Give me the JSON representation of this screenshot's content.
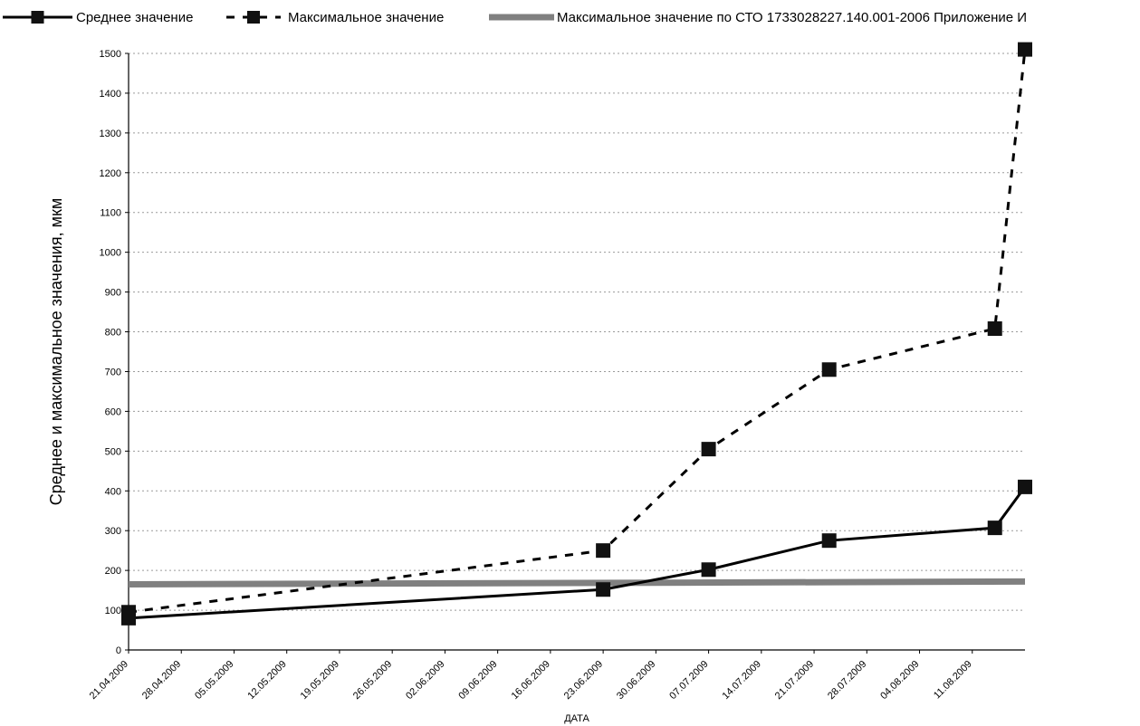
{
  "chart_data": {
    "type": "line",
    "xlabel": "ДАТА",
    "ylabel": "Среднее и максимальное значения, мкм",
    "ylim": [
      0,
      1500
    ],
    "yticks": [
      0,
      100,
      200,
      300,
      400,
      500,
      600,
      700,
      800,
      900,
      1000,
      1100,
      1200,
      1300,
      1400,
      1500
    ],
    "xlim": [
      "2009-04-21",
      "2009-08-18"
    ],
    "xtick_labels": [
      "21.04.2009",
      "28.04.2009",
      "05.05.2009",
      "12.05.2009",
      "19.05.2009",
      "26.05.2009",
      "02.06.2009",
      "09.06.2009",
      "16.06.2009",
      "23.06.2009",
      "30.06.2009",
      "07.07.2009",
      "14.07.2009",
      "21.07.2009",
      "28.07.2009",
      "04.08.2009",
      "11.08.2009"
    ],
    "grid": true,
    "legend_position": "top",
    "series": [
      {
        "name": "Среднее значение",
        "style": "solid",
        "color": "#000000",
        "marker": "square",
        "points": [
          {
            "x": "2009-04-21",
            "y": 80
          },
          {
            "x": "2009-06-23",
            "y": 152
          },
          {
            "x": "2009-07-07",
            "y": 202
          },
          {
            "x": "2009-07-23",
            "y": 275
          },
          {
            "x": "2009-08-14",
            "y": 307
          },
          {
            "x": "2009-08-18",
            "y": 410
          }
        ]
      },
      {
        "name": "Максимальное значение",
        "style": "dashed",
        "color": "#000000",
        "marker": "square",
        "points": [
          {
            "x": "2009-04-21",
            "y": 95
          },
          {
            "x": "2009-06-23",
            "y": 250
          },
          {
            "x": "2009-07-07",
            "y": 505
          },
          {
            "x": "2009-07-23",
            "y": 705
          },
          {
            "x": "2009-08-14",
            "y": 808
          },
          {
            "x": "2009-08-18",
            "y": 1510
          }
        ]
      },
      {
        "name": "Максимальное значение по СТО 1733028227.140.001-2006 Приложение И",
        "style": "thick",
        "color": "#808080",
        "marker": "none",
        "points": [
          {
            "x": "2009-04-21",
            "y": 165
          },
          {
            "x": "2009-08-18",
            "y": 172
          }
        ]
      }
    ]
  }
}
